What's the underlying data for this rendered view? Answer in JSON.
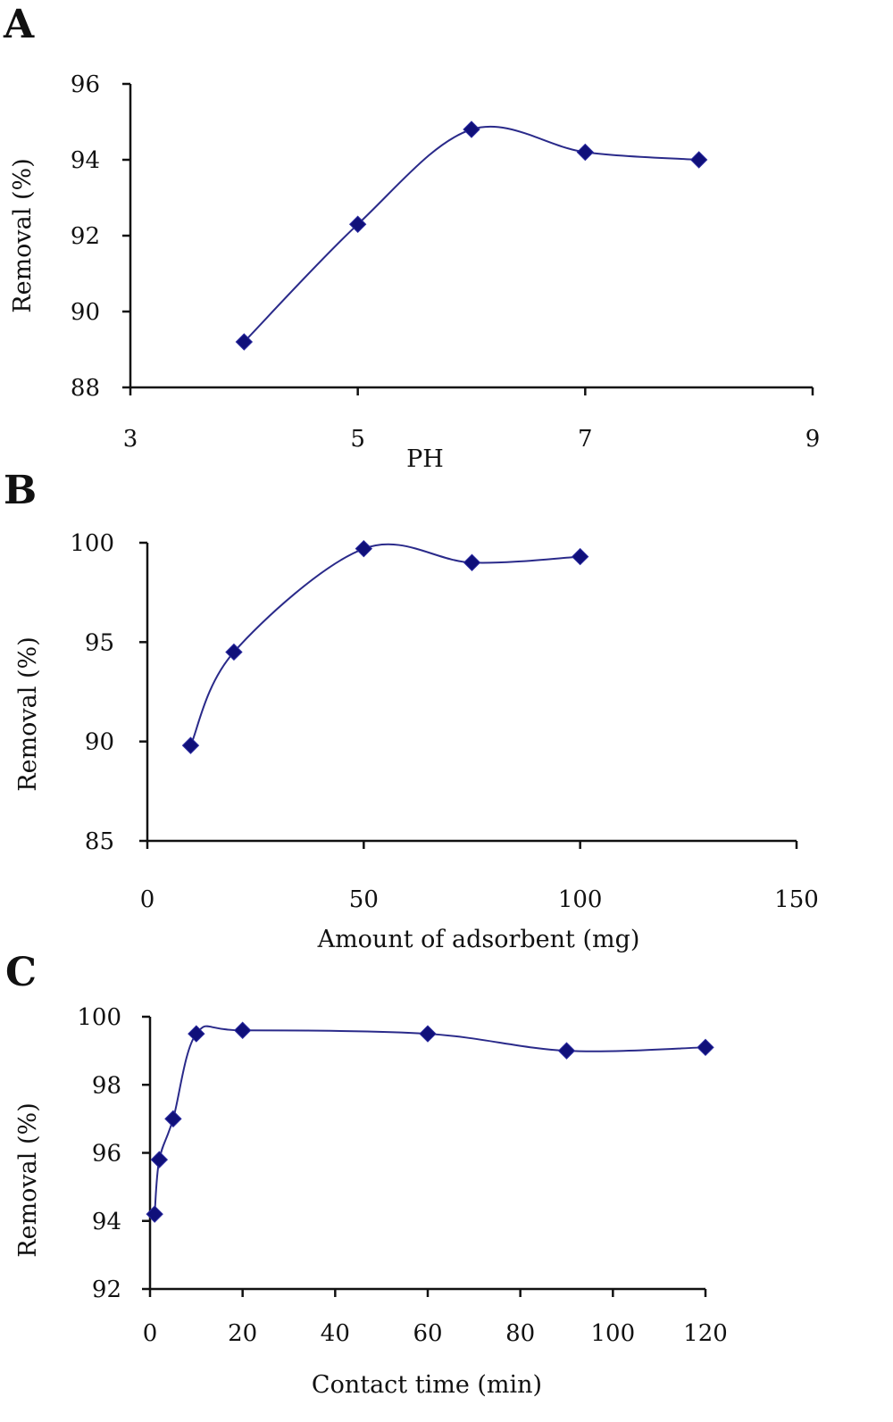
{
  "chart_data": [
    {
      "type": "line",
      "panel": "A",
      "x": [
        4,
        5,
        6,
        7,
        8
      ],
      "series": [
        {
          "values": [
            89.2,
            92.3,
            94.8,
            94.2,
            94.0
          ]
        }
      ],
      "xlabel": "PH",
      "ylabel": "Removal (%)",
      "xlim": [
        3,
        9
      ],
      "ylim": [
        88,
        96
      ],
      "xticks": [
        3,
        5,
        7,
        9
      ],
      "yticks": [
        88,
        90,
        92,
        94,
        96
      ],
      "grid": false,
      "color": "#10107a"
    },
    {
      "type": "line",
      "panel": "B",
      "x": [
        10,
        20,
        50,
        75,
        100
      ],
      "series": [
        {
          "values": [
            89.8,
            94.5,
            99.7,
            99.0,
            99.3
          ]
        }
      ],
      "xlabel": "Amount of adsorbent (mg)",
      "ylabel": "Removal (%)",
      "xlim": [
        0,
        150
      ],
      "ylim": [
        85,
        100
      ],
      "xticks": [
        0,
        50,
        100,
        150
      ],
      "yticks": [
        85,
        90,
        95,
        100
      ],
      "grid": false,
      "color": "#10107a"
    },
    {
      "type": "line",
      "panel": "C",
      "x": [
        1,
        2,
        5,
        10,
        20,
        60,
        90,
        120
      ],
      "series": [
        {
          "values": [
            94.2,
            95.8,
            97.0,
            99.5,
            99.6,
            99.5,
            99.0,
            99.1
          ]
        }
      ],
      "xlabel": "Contact time (min)",
      "ylabel": "Removal (%)",
      "xlim": [
        0,
        120
      ],
      "ylim": [
        92,
        100
      ],
      "xticks": [
        0,
        20,
        40,
        60,
        80,
        100,
        120
      ],
      "yticks": [
        92,
        94,
        96,
        98,
        100
      ],
      "grid": false,
      "color": "#10107a"
    }
  ]
}
